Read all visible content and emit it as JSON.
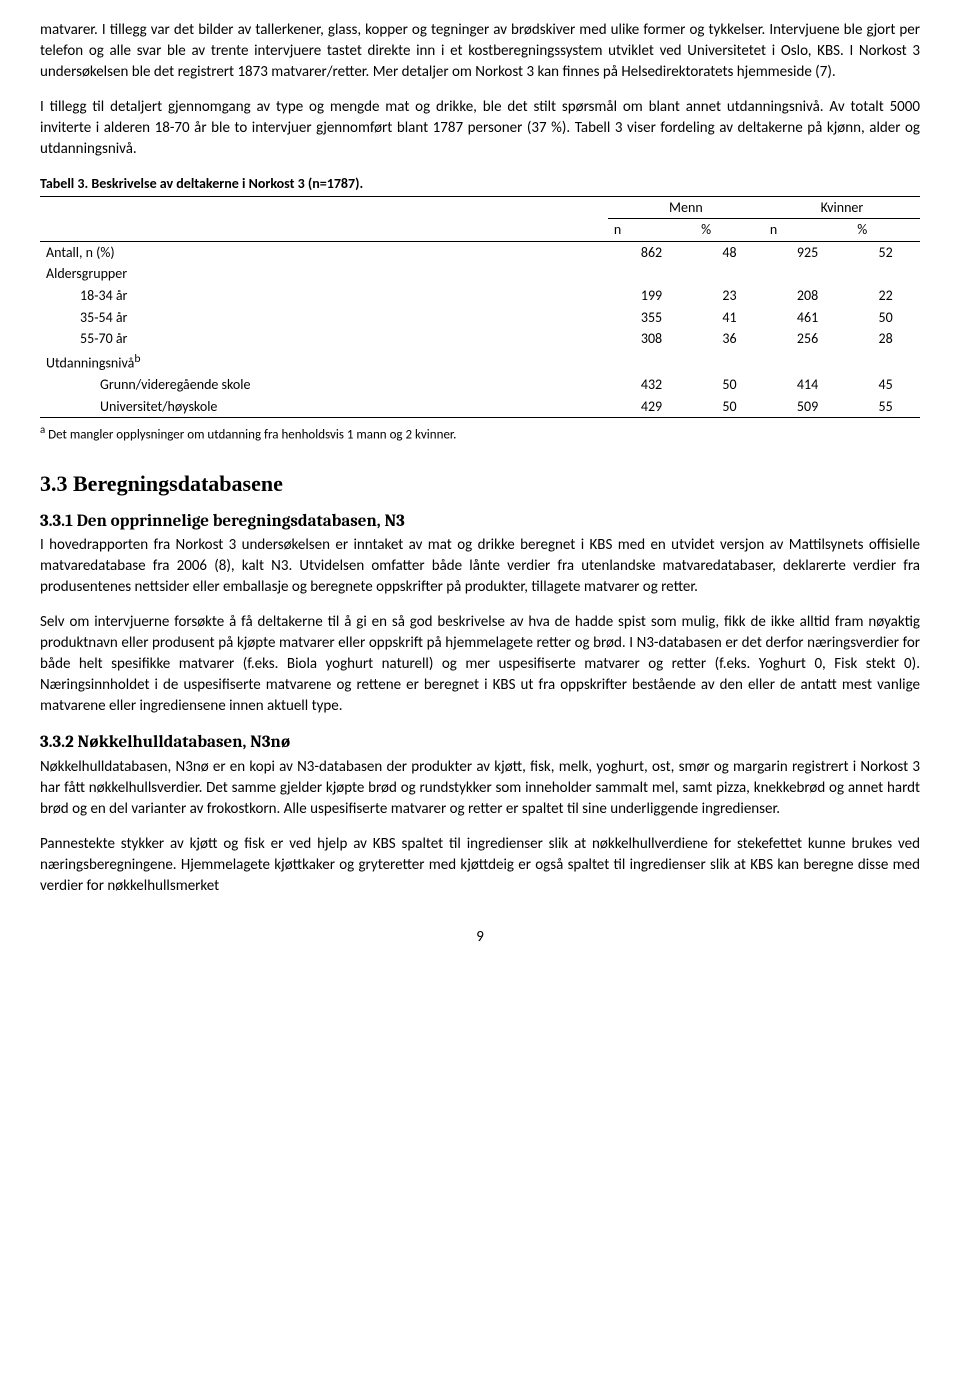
{
  "paragraphs": {
    "p1": "matvarer. I tillegg var det bilder av tallerkener, glass, kopper og tegninger av brødskiver med ulike former og tykkelser. Intervjuene ble gjort per telefon og alle svar ble av trente intervjuere tastet direkte inn i et kostberegningssystem utviklet ved Universitetet i Oslo, KBS. I Norkost 3 undersøkelsen ble det registrert 1873 matvarer/retter. Mer detaljer om Norkost 3 kan finnes på Helsedirektoratets hjemmeside (7).",
    "p2": "I tillegg til detaljert gjennomgang av type og mengde mat og drikke, ble det stilt spørsmål om blant annet utdanningsnivå. Av totalt 5000 inviterte i alderen 18-70 år ble to intervjuer gjennomført blant 1787 personer (37 %). Tabell 3 viser fordeling av deltakerne på kjønn, alder og utdanningsnivå.",
    "p3": "I hovedrapporten fra Norkost 3 undersøkelsen er inntaket av mat og drikke beregnet i KBS med en utvidet versjon av Mattilsynets offisielle matvaredatabase fra 2006 (8), kalt N3. Utvidelsen omfatter både lånte verdier fra utenlandske matvaredatabaser, deklarerte verdier fra produsentenes nettsider eller emballasje og beregnete oppskrifter på produkter, tillagete matvarer og retter.",
    "p4": "Selv om intervjuerne forsøkte å få deltakerne til å gi en så god beskrivelse av hva de hadde spist som mulig, fikk de ikke alltid fram nøyaktig produktnavn eller produsent på kjøpte matvarer eller oppskrift på hjemmelagete retter og brød. I N3-databasen er det derfor næringsverdier for både helt spesifikke matvarer (f.eks. Biola yoghurt naturell) og mer uspesifiserte matvarer og retter (f.eks. Yoghurt 0, Fisk stekt 0). Næringsinnholdet i de uspesifiserte matvarene og rettene er beregnet i KBS ut fra oppskrifter bestående av den eller de antatt mest vanlige matvarene eller ingrediensene innen aktuell type.",
    "p5": "Nøkkelhulldatabasen, N3nø er en kopi av N3-databasen der produkter av kjøtt, fisk, melk, yoghurt, ost, smør og margarin registrert i Norkost 3 har fått nøkkelhullsverdier. Det samme gjelder kjøpte brød og rundstykker som inneholder sammalt mel, samt pizza, knekkebrød og annet hardt brød og en del varianter av frokostkorn. Alle uspesifiserte matvarer og retter er spaltet til sine underliggende ingredienser.",
    "p6": "Pannestekte stykker av kjøtt og fisk er ved hjelp av KBS spaltet til ingredienser slik at nøkkelhullverdiene for stekefettet kunne brukes ved næringsberegningene. Hjemmelagete kjøttkaker og gryteretter med kjøttdeig er også spaltet til ingredienser slik at KBS kan beregne disse med verdier for nøkkelhullsmerket"
  },
  "table": {
    "caption": "Tabell 3. Beskrivelse av deltakerne i Norkost 3 (n=1787).",
    "group_headers": [
      "Menn",
      "Kvinner"
    ],
    "sub_headers": [
      "n",
      "%",
      "n",
      "%"
    ],
    "rows": [
      {
        "label": "Antall, n (%)",
        "indent": 0,
        "values": [
          "862",
          "48",
          "925",
          "52"
        ]
      },
      {
        "label": "Aldersgrupper",
        "indent": 0,
        "values": [
          "",
          "",
          "",
          ""
        ]
      },
      {
        "label": "18-34 år",
        "indent": 1,
        "values": [
          "199",
          "23",
          "208",
          "22"
        ]
      },
      {
        "label": "35-54 år",
        "indent": 1,
        "values": [
          "355",
          "41",
          "461",
          "50"
        ]
      },
      {
        "label": "55-70 år",
        "indent": 1,
        "values": [
          "308",
          "36",
          "256",
          "28"
        ]
      },
      {
        "label": "Utdanningsnivå",
        "sup": "b",
        "indent": 0,
        "values": [
          "",
          "",
          "",
          ""
        ]
      },
      {
        "label": "Grunn/videregående skole",
        "indent": 2,
        "values": [
          "432",
          "50",
          "414",
          "45"
        ]
      },
      {
        "label": "Universitet/høyskole",
        "indent": 2,
        "values": [
          "429",
          "50",
          "509",
          "55"
        ]
      }
    ],
    "footnote_sup": "a",
    "footnote": " Det mangler opplysninger om utdanning fra henholdsvis 1 mann og 2 kvinner."
  },
  "headings": {
    "h2_33": "3.3  Beregningsdatabasene",
    "h3_331": "3.3.1   Den opprinnelige beregningsdatabasen, N3",
    "h3_332": "3.3.2   Nøkkelhulldatabasen, N3nø"
  },
  "page_number": "9"
}
